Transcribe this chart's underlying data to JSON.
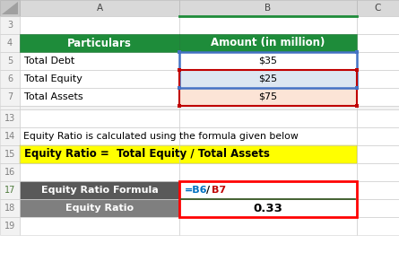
{
  "bg_color": "#ffffff",
  "header_row4_bg": "#1e8c3a",
  "header_row4_fg": "#ffffff",
  "header_col_a": "Particulars",
  "header_col_b": "Amount (in million)",
  "row_num_color": "#7f7f7f",
  "row17_num_color": "#4e7a3c",
  "text_row14": "Equity Ratio is calculated using the formula given below",
  "text_row15": "Equity Ratio =  Total Equity / Total Assets",
  "row15_bg": "#ffff00",
  "row15_fg": "#000000",
  "formula_label": "Equity Ratio Formula",
  "formula_label_bg": "#595959",
  "formula_label_fg": "#ffffff",
  "formula_b6_color": "#0070c0",
  "formula_b7_color": "#c00000",
  "result_label": "Equity Ratio",
  "result_label_bg": "#7f7f7f",
  "result_label_fg": "#ffffff",
  "result_value": "0.33",
  "blue_border": "#4472c4",
  "red_border_dark": "#c00000",
  "red_border_bright": "#ff0000",
  "green_line": "#375623",
  "cell_blue_bg": "#dce6f1",
  "cell_red_bg": "#fce4d6",
  "col_header_bg": "#d9d9d9",
  "col_header_fg": "#444444",
  "col_b_header_bg": "#d3d3d3",
  "grid_color": "#d0d0d0",
  "num_col_bg": "#f2f2f2"
}
